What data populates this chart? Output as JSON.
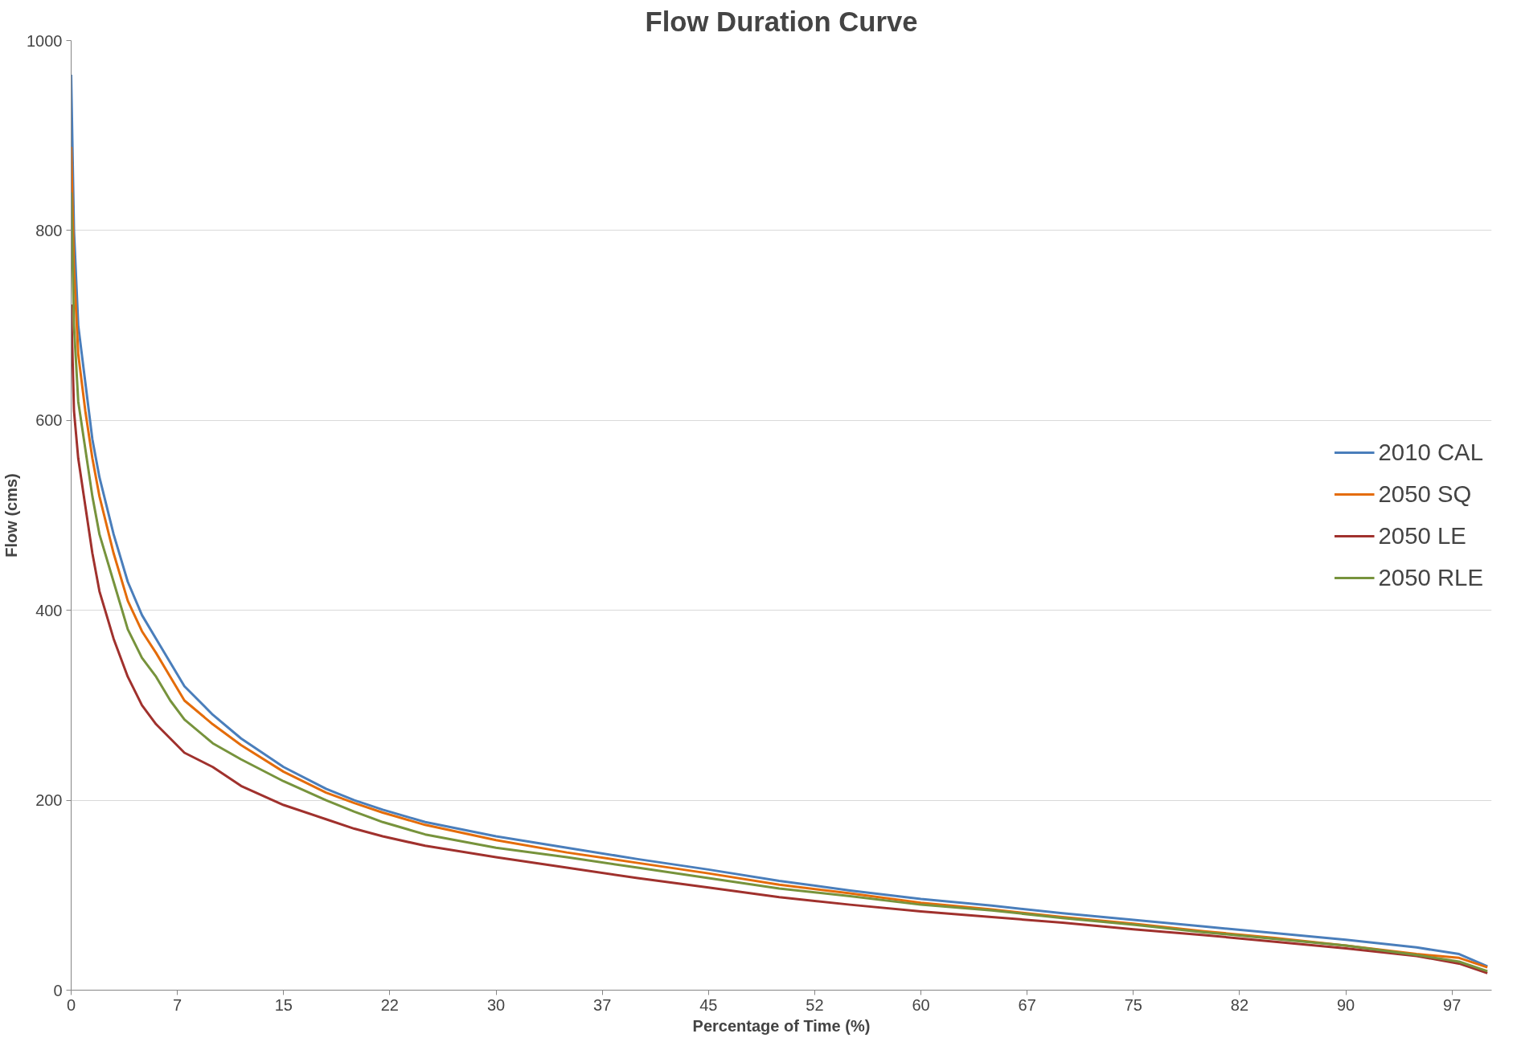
{
  "chart_data": {
    "type": "line",
    "title": "Flow Duration Curve",
    "xlabel": "Percentage of Time (%)",
    "ylabel": "Flow (cms)",
    "xlim": [
      0,
      100.3
    ],
    "ylim": [
      0,
      1000
    ],
    "xticks": [
      0,
      {
        "value": 7.5,
        "label": "7"
      },
      15,
      {
        "value": 22.5,
        "label": "22"
      },
      30,
      {
        "value": 37.5,
        "label": "37"
      },
      45,
      {
        "value": 52.5,
        "label": "52"
      },
      60,
      {
        "value": 67.5,
        "label": "67"
      },
      75,
      {
        "value": 82.5,
        "label": "82"
      },
      90,
      {
        "value": 97.5,
        "label": "97"
      }
    ],
    "yticks": [
      0,
      200,
      400,
      600,
      800,
      1000
    ],
    "x": [
      0,
      0.2,
      0.5,
      1,
      1.5,
      2,
      3,
      4,
      5,
      6,
      7,
      8,
      10,
      12,
      15,
      18,
      20,
      22,
      25,
      30,
      35,
      40,
      45,
      50,
      55,
      60,
      65,
      70,
      75,
      80,
      85,
      90,
      95,
      98,
      100
    ],
    "series": [
      {
        "name": "2010 CAL",
        "color": "#4a7ebb",
        "values": [
          964,
          800,
          700,
          640,
          580,
          540,
          480,
          430,
          395,
          370,
          345,
          320,
          290,
          265,
          235,
          212,
          200,
          190,
          177,
          162,
          150,
          138,
          127,
          115,
          105,
          96,
          89,
          81,
          74,
          67,
          60,
          53,
          45,
          38,
          25
        ]
      },
      {
        "name": "2050 SQ",
        "color": "#e46c0a",
        "values": [
          888,
          760,
          670,
          610,
          560,
          520,
          460,
          410,
          378,
          355,
          330,
          305,
          280,
          258,
          230,
          208,
          197,
          187,
          174,
          158,
          145,
          134,
          123,
          111,
          102,
          92,
          85,
          77,
          70,
          62,
          55,
          47,
          38,
          34,
          24
        ]
      },
      {
        "name": "2050 LE",
        "color": "#a0312d",
        "values": [
          722,
          610,
          560,
          510,
          460,
          420,
          370,
          330,
          300,
          280,
          265,
          250,
          235,
          215,
          195,
          180,
          170,
          162,
          152,
          140,
          129,
          118,
          108,
          98,
          90,
          83,
          77,
          71,
          64,
          58,
          51,
          44,
          36,
          28,
          18
        ]
      },
      {
        "name": "2050 RLE",
        "color": "#77933c",
        "values": [
          840,
          700,
          620,
          570,
          520,
          480,
          430,
          380,
          350,
          330,
          305,
          285,
          260,
          243,
          220,
          200,
          188,
          177,
          164,
          150,
          140,
          129,
          118,
          107,
          99,
          90,
          84,
          76,
          69,
          61,
          54,
          47,
          37,
          30,
          20
        ]
      }
    ],
    "grid": "y",
    "legend": "right",
    "marker": "none",
    "line_style": "solid"
  }
}
